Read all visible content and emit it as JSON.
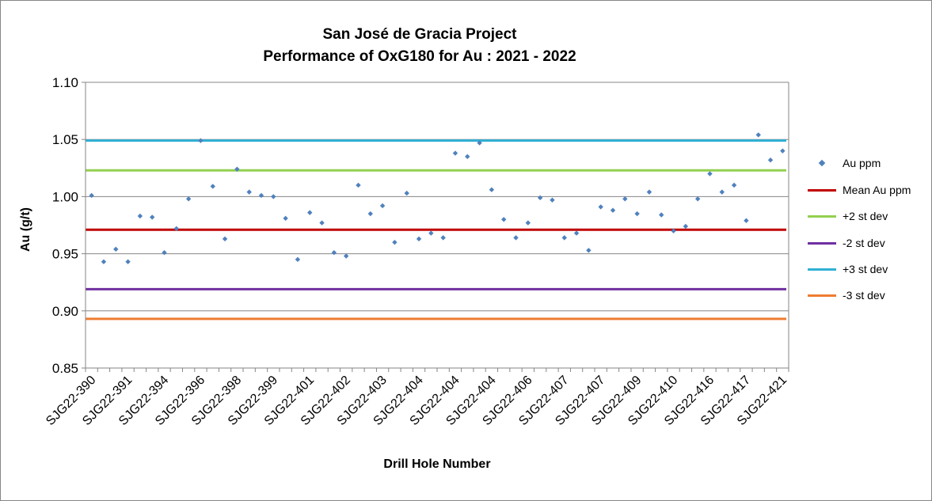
{
  "chart_data": {
    "type": "scatter",
    "title": "San José de Gracia Project",
    "subtitle": "Performance of OxG180 for Au : 2021 - 2022",
    "xlabel": "Drill Hole Number",
    "ylabel": "Au (g/t)",
    "ylim": [
      0.85,
      1.1
    ],
    "y_ticks": [
      "0.85",
      "0.90",
      "0.95",
      "1.00",
      "1.05",
      "1.10"
    ],
    "grid": true,
    "legend_position": "right",
    "x_tick_labels": [
      "SJG22-390",
      "SJG22-391",
      "SJG22-394",
      "SJG22-396",
      "SJG22-398",
      "SJG22-399",
      "SJG22-401",
      "SJG22-402",
      "SJG22-403",
      "SJG22-404",
      "SJG22-404",
      "SJG22-404",
      "SJG22-406",
      "SJG22-407",
      "SJG22-407",
      "SJG22-409",
      "SJG22-410",
      "SJG22-416",
      "SJG22-417",
      "SJG22-421"
    ],
    "series": [
      {
        "name": "Au ppm",
        "kind": "points",
        "color": "#4F81BD",
        "values": [
          1.001,
          0.943,
          0.954,
          0.943,
          0.983,
          0.982,
          0.951,
          0.972,
          0.998,
          1.049,
          1.009,
          0.963,
          1.024,
          1.004,
          1.001,
          1.0,
          0.981,
          0.945,
          0.986,
          0.977,
          0.951,
          0.948,
          1.01,
          0.985,
          0.992,
          0.96,
          1.003,
          0.963,
          0.968,
          0.964,
          1.038,
          1.035,
          1.047,
          1.006,
          0.98,
          0.964,
          0.977,
          0.999,
          0.997,
          0.964,
          0.968,
          0.953,
          0.991,
          0.988,
          0.998,
          0.985,
          1.004,
          0.984,
          0.97,
          0.974,
          0.998,
          1.02,
          1.004,
          1.01,
          0.979,
          1.054,
          1.032,
          1.04
        ]
      },
      {
        "name": "Mean Au ppm",
        "kind": "line",
        "color": "#C00000",
        "value": 0.971
      },
      {
        "name": "+2 st dev",
        "kind": "line",
        "color": "#92D050",
        "value": 1.023
      },
      {
        "name": "-2 st dev",
        "kind": "line",
        "color": "#7030A0",
        "value": 0.919
      },
      {
        "name": "+3 st dev",
        "kind": "line",
        "color": "#31B0D5",
        "value": 1.049
      },
      {
        "name": "-3 st dev",
        "kind": "line",
        "color": "#ED7D31",
        "value": 0.893
      }
    ]
  }
}
